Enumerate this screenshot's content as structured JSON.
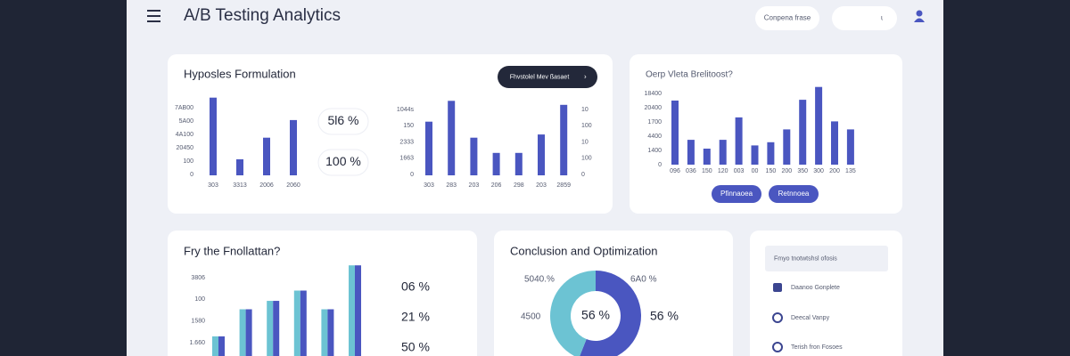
{
  "header": {
    "title": "A/B Testing Analytics",
    "button1": "Conpena frase",
    "button2": "ɩ"
  },
  "card1": {
    "title": "Hyposles Formulation",
    "dropdown": "Fhvstolel Mev ßasaet",
    "chart_left": {
      "ylim": [
        0,
        100
      ],
      "ylabels": [
        "7AB00",
        "5A00",
        "4A100",
        "20450",
        "100",
        "0"
      ],
      "categories": [
        "303",
        "3313",
        "2006",
        "2060"
      ],
      "values": [
        97,
        20,
        47,
        69
      ],
      "color": "#4a56c0"
    },
    "pills": [
      "5l6 %",
      "100 %"
    ],
    "chart_right": {
      "ylim": [
        0,
        100
      ],
      "ylabels": [
        "1044s",
        "150",
        "2333",
        "1663",
        "0"
      ],
      "y2labels": [
        "10",
        "100",
        "10",
        "100",
        "0"
      ],
      "categories": [
        "303",
        "283",
        "203",
        "206",
        "298",
        "203",
        "2859"
      ],
      "values": [
        67,
        93,
        47,
        28,
        28,
        51,
        88
      ],
      "color": "#4a56c0"
    }
  },
  "card2": {
    "title": "Oerp Vleta Brelitoost?",
    "chart": {
      "ylim": [
        0,
        100
      ],
      "ylabels": [
        "18400",
        "20400",
        "1700",
        "4400",
        "1400",
        "0"
      ],
      "categories": [
        "096",
        "036",
        "150",
        "120",
        "003",
        "00",
        "150",
        "200",
        "350",
        "300",
        "200",
        "135"
      ],
      "values": [
        80,
        31,
        20,
        31,
        59,
        24,
        28,
        44,
        81,
        97,
        54,
        44
      ],
      "color": "#4a56c0"
    },
    "buttons": [
      "Pfinnaoea",
      "Retnnoea"
    ]
  },
  "card3": {
    "title": "Fry the Fnollattan?",
    "chart": {
      "ylim": [
        0,
        100
      ],
      "ylabels": [
        "3806",
        "100",
        "1580",
        "1.660"
      ],
      "series": [
        {
          "color": "#6cc3d3",
          "values": [
            21,
            50,
            59,
            70,
            50,
            97
          ]
        },
        {
          "color": "#4a56c0",
          "values": [
            21,
            50,
            59,
            70,
            50,
            97
          ]
        }
      ]
    },
    "stats": [
      "06 %",
      "21 %",
      "50 %"
    ]
  },
  "card4": {
    "title": "Conclusion and Optimization",
    "donut": {
      "values": [
        56,
        44
      ],
      "colors": [
        "#4a56c0",
        "#6cc3d3"
      ],
      "center_label": "56 %"
    },
    "labels": [
      "5040.%",
      "6A0 %",
      "4500",
      "56 %"
    ]
  },
  "card5": {
    "heading": "Fmyo tnotwtshsl ofosis",
    "items": [
      "Daanoo Gonplete",
      "Deecal Vanpy",
      "Terish fron Fosoes"
    ]
  }
}
